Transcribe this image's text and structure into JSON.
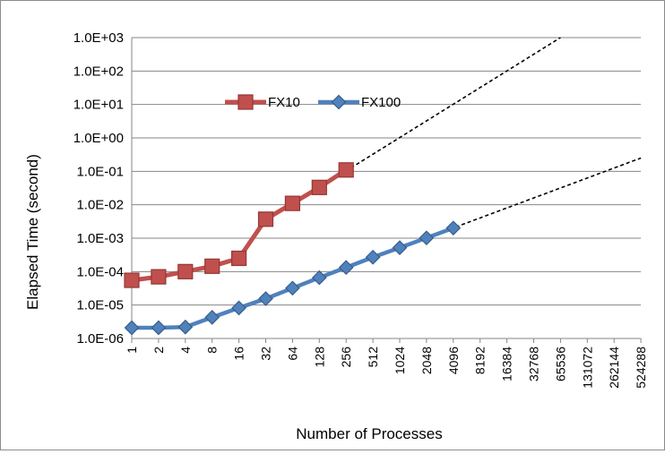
{
  "chart_data": {
    "type": "line",
    "title": "",
    "xlabel": "Number of Processes",
    "ylabel": "Elapsed Time (second)",
    "y_scale": "log",
    "ylim": [
      1e-06,
      1000
    ],
    "x_scale": "log2 (categorical)",
    "grid": "horizontal major gridlines",
    "legend_position": "upper-left, inside plot",
    "categories": [
      "1",
      "2",
      "4",
      "8",
      "16",
      "32",
      "64",
      "128",
      "256",
      "512",
      "1024",
      "2048",
      "4096",
      "8192",
      "16384",
      "32768",
      "65536",
      "131072",
      "262144",
      "524288"
    ],
    "y_tick_labels": [
      "1.0E+03",
      "1.0E+02",
      "1.0E+01",
      "1.0E+00",
      "1.0E-01",
      "1.0E-02",
      "1.0E-03",
      "1.0E-04",
      "1.0E-05",
      "1.0E-06"
    ],
    "series": [
      {
        "name": "FX10",
        "color": "#c0504d",
        "edge_color": "#943634",
        "marker": "square",
        "values": [
          5.5e-05,
          7e-05,
          0.0001,
          0.000145,
          0.00025,
          0.0037,
          0.011,
          0.033,
          0.11,
          null,
          null,
          null,
          null,
          null,
          null,
          null,
          null,
          null,
          null,
          null
        ]
      },
      {
        "name": "FX100",
        "color": "#4f81bd",
        "edge_color": "#385d8a",
        "marker": "diamond",
        "values": [
          2.1e-06,
          2.1e-06,
          2.2e-06,
          4.3e-06,
          8.2e-06,
          1.55e-05,
          3.2e-05,
          6.6e-05,
          0.000133,
          0.00027,
          0.00052,
          0.00102,
          0.00201,
          null,
          null,
          null,
          null,
          null,
          null,
          null
        ]
      }
    ],
    "trend_lines": [
      {
        "of": "FX10",
        "style": "dashed",
        "x": [
          "32",
          "65536"
        ],
        "y": [
          0.0033,
          1000
        ]
      },
      {
        "of": "FX100",
        "style": "dashed",
        "x": [
          "4",
          "524288"
        ],
        "y": [
          2.1e-06,
          0.25
        ]
      }
    ]
  }
}
